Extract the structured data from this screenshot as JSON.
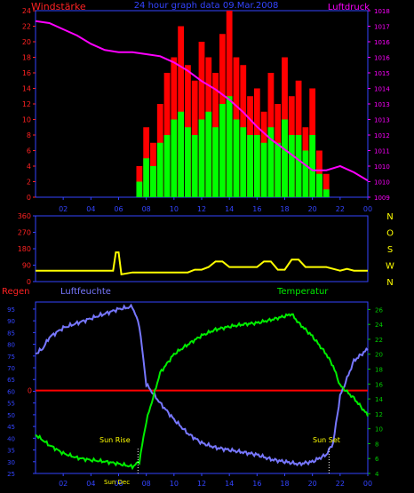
{
  "header": {
    "left_label": "Windstärke",
    "title": "24 hour graph data  09.Mar.2008",
    "right_label": "Luftdruck"
  },
  "colors": {
    "wind_max": "#ff0000",
    "wind_avg": "#00ff00",
    "pressure": "#ff00ff",
    "direction": "#ffff00",
    "humidity": "#7777ff",
    "temperature": "#00ee00",
    "rain": "#ff0000",
    "axis_blue": "#3344ff",
    "axis_red": "#ff2222",
    "axis_magenta": "#ff00ff",
    "axis_green": "#00cc00",
    "axis_yellow": "#ffff00"
  },
  "x_ticks": [
    "02",
    "04",
    "06",
    "08",
    "10",
    "12",
    "14",
    "16",
    "18",
    "20",
    "22",
    "00"
  ],
  "panel1": {
    "wind_ticks": [
      "0",
      "2",
      "4",
      "6",
      "8",
      "10",
      "12",
      "14",
      "16",
      "18",
      "20",
      "22",
      "24"
    ],
    "pressure_ticks": [
      "1009",
      "1010",
      "1010",
      "1011",
      "1012",
      "1013",
      "1013",
      "1014",
      "1015",
      "1016",
      "1016",
      "1017",
      "1018"
    ]
  },
  "panel2": {
    "dir_ticks": [
      "0",
      "90",
      "180",
      "270",
      "360"
    ],
    "compass": [
      "N",
      "W",
      "S",
      "O",
      "N"
    ]
  },
  "panel3": {
    "rain_label": "Regen",
    "humidity_label": "Luftfeuchte",
    "temperature_label": "Temperatur",
    "rain_tick": "0",
    "humidity_ticks": [
      "25",
      "30",
      "35",
      "40",
      "45",
      "50",
      "55",
      "60",
      "65",
      "70",
      "75",
      "80",
      "85",
      "90",
      "95"
    ],
    "temp_ticks": [
      "4",
      "6",
      "8",
      "10",
      "12",
      "14",
      "16",
      "18",
      "20",
      "22",
      "24",
      "26"
    ],
    "sun_rise_label": "Sun Rise",
    "sun_set_label": "Sun Set",
    "sun_dec_label": "Sun Dec"
  },
  "chart_data": [
    {
      "type": "bar",
      "name": "Windstärke / Luftdruck",
      "x_unit": "hour",
      "xlim": [
        0,
        24
      ],
      "wind_ylim": [
        0,
        24
      ],
      "pressure_ylim": [
        1009,
        1018
      ],
      "series": [
        {
          "name": "Windstärke max",
          "x": [
            7.5,
            8,
            8.5,
            9,
            9.5,
            10,
            10.5,
            11,
            11.5,
            12,
            12.5,
            13,
            13.5,
            14,
            14.5,
            15,
            15.5,
            16,
            16.5,
            17,
            17.5,
            18,
            18.5,
            19,
            19.5,
            20,
            20.5,
            21
          ],
          "values": [
            4,
            9,
            7,
            12,
            16,
            18,
            22,
            17,
            15,
            20,
            18,
            16,
            21,
            24,
            18,
            17,
            13,
            14,
            11,
            16,
            12,
            18,
            13,
            15,
            9,
            14,
            6,
            3
          ]
        },
        {
          "name": "Windstärke avg",
          "x": [
            7.5,
            8,
            8.5,
            9,
            9.5,
            10,
            10.5,
            11,
            11.5,
            12,
            12.5,
            13,
            13.5,
            14,
            14.5,
            15,
            15.5,
            16,
            16.5,
            17,
            17.5,
            18,
            18.5,
            19,
            19.5,
            20,
            20.5,
            21
          ],
          "values": [
            2,
            5,
            4,
            7,
            8,
            10,
            11,
            9,
            8,
            10,
            11,
            9,
            12,
            13,
            10,
            9,
            8,
            8,
            7,
            9,
            7,
            10,
            8,
            8,
            6,
            8,
            3,
            1
          ]
        },
        {
          "name": "Luftdruck",
          "x": [
            0,
            1,
            2,
            3,
            4,
            5,
            6,
            7,
            8,
            9,
            10,
            11,
            12,
            13,
            14,
            15,
            16,
            17,
            18,
            19,
            20,
            21,
            22,
            23,
            24
          ],
          "values": [
            1017.5,
            1017.4,
            1017.1,
            1016.8,
            1016.4,
            1016.1,
            1016.0,
            1016.0,
            1015.9,
            1015.8,
            1015.5,
            1015.1,
            1014.6,
            1014.2,
            1013.7,
            1013.1,
            1012.4,
            1011.8,
            1011.3,
            1010.8,
            1010.3,
            1010.3,
            1010.5,
            1010.2,
            1009.8
          ]
        }
      ]
    },
    {
      "type": "line",
      "name": "Windrichtung",
      "x_unit": "hour",
      "xlim": [
        0,
        24
      ],
      "ylim": [
        0,
        360
      ],
      "series": [
        {
          "name": "Windrichtung",
          "x": [
            0,
            1,
            2,
            3,
            4,
            5,
            5.6,
            5.8,
            6.0,
            6.2,
            7,
            8,
            9,
            10,
            11,
            11.5,
            12,
            12.5,
            13,
            13.5,
            14,
            15,
            16,
            16.5,
            17,
            17.5,
            18,
            18.5,
            19,
            19.5,
            20,
            21,
            22,
            22.5,
            23,
            24
          ],
          "values": [
            60,
            60,
            60,
            60,
            60,
            60,
            60,
            160,
            160,
            40,
            50,
            50,
            50,
            50,
            50,
            65,
            65,
            80,
            110,
            110,
            80,
            80,
            80,
            110,
            110,
            65,
            65,
            120,
            120,
            80,
            80,
            80,
            60,
            70,
            60,
            60
          ]
        }
      ]
    },
    {
      "type": "line",
      "name": "Luftfeuchte / Temperatur",
      "x_unit": "hour",
      "xlim": [
        0,
        24
      ],
      "humidity_ylim": [
        25,
        98
      ],
      "temperature_ylim": [
        4,
        27
      ],
      "series": [
        {
          "name": "Luftfeuchte",
          "x": [
            0,
            0.5,
            1,
            2,
            3,
            4,
            5,
            6,
            7,
            7.5,
            8,
            9,
            10,
            11,
            12,
            13,
            14,
            15,
            16,
            17,
            18,
            19,
            20,
            21,
            21.5,
            22,
            23,
            24
          ],
          "values": [
            76,
            78,
            83,
            87,
            89,
            91,
            93,
            95,
            96,
            88,
            63,
            55,
            48,
            42,
            38,
            36,
            35,
            34,
            33,
            31,
            30,
            29,
            30,
            33,
            38,
            58,
            73,
            78
          ]
        },
        {
          "name": "Temperatur",
          "x": [
            0,
            1,
            2,
            3,
            4,
            5,
            6,
            7,
            7.5,
            8,
            9,
            10,
            11,
            12,
            13,
            14,
            15,
            16,
            17,
            18,
            18.5,
            19,
            20,
            21,
            21.5,
            22,
            23,
            24
          ],
          "values": [
            9.2,
            7.8,
            6.7,
            6.1,
            5.8,
            5.6,
            5.3,
            4.9,
            5.6,
            11,
            17.5,
            20,
            21.3,
            22.5,
            23.3,
            23.7,
            24.0,
            24.2,
            24.6,
            25.1,
            25.4,
            24.2,
            22.4,
            20,
            18.4,
            15.8,
            14.1,
            11.8
          ]
        },
        {
          "name": "Regen",
          "x": [
            0,
            24
          ],
          "values": [
            0,
            0
          ]
        }
      ]
    }
  ]
}
